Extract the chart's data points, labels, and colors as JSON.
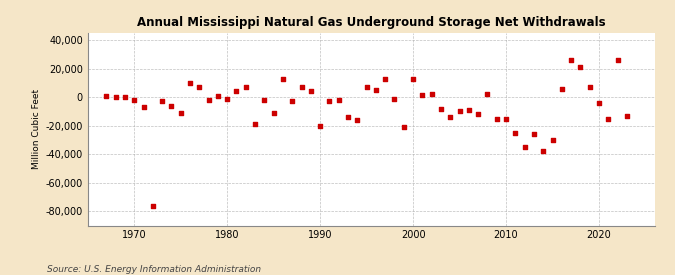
{
  "title": "Annual Mississippi Natural Gas Underground Storage Net Withdrawals",
  "ylabel": "Million Cubic Feet",
  "source": "Source: U.S. Energy Information Administration",
  "background_color": "#f5e6c8",
  "plot_bg_color": "#ffffff",
  "marker_color": "#cc0000",
  "years": [
    1967,
    1968,
    1969,
    1970,
    1971,
    1972,
    1973,
    1974,
    1975,
    1976,
    1977,
    1978,
    1979,
    1980,
    1981,
    1982,
    1983,
    1984,
    1985,
    1986,
    1987,
    1988,
    1989,
    1990,
    1991,
    1992,
    1993,
    1994,
    1995,
    1996,
    1997,
    1998,
    1999,
    2000,
    2001,
    2002,
    2003,
    2004,
    2005,
    2006,
    2007,
    2008,
    2009,
    2010,
    2011,
    2012,
    2013,
    2014,
    2015,
    2016,
    2017,
    2018,
    2019,
    2020,
    2021,
    2022,
    2023
  ],
  "values": [
    500,
    200,
    300,
    -2000,
    -7000,
    -76000,
    -2500,
    -6500,
    -11000,
    10000,
    7000,
    -2000,
    1000,
    -1500,
    4000,
    7000,
    -19000,
    -2000,
    -11000,
    13000,
    -3000,
    7000,
    4000,
    -20000,
    -3000,
    -2000,
    -14000,
    -16000,
    7000,
    5000,
    13000,
    -1000,
    -21000,
    13000,
    1500,
    2000,
    -8000,
    -14000,
    -10000,
    -9000,
    -12000,
    2000,
    -15000,
    -15000,
    -25000,
    -35000,
    -26000,
    -38000,
    -30000,
    6000,
    26000,
    21000,
    7000,
    -4000,
    -15000,
    26000,
    -13000
  ],
  "ylim": [
    -90000,
    45000
  ],
  "yticks": [
    -80000,
    -60000,
    -40000,
    -20000,
    0,
    20000,
    40000
  ],
  "xticks": [
    1970,
    1980,
    1990,
    2000,
    2010,
    2020
  ],
  "xlim": [
    1965,
    2026
  ]
}
